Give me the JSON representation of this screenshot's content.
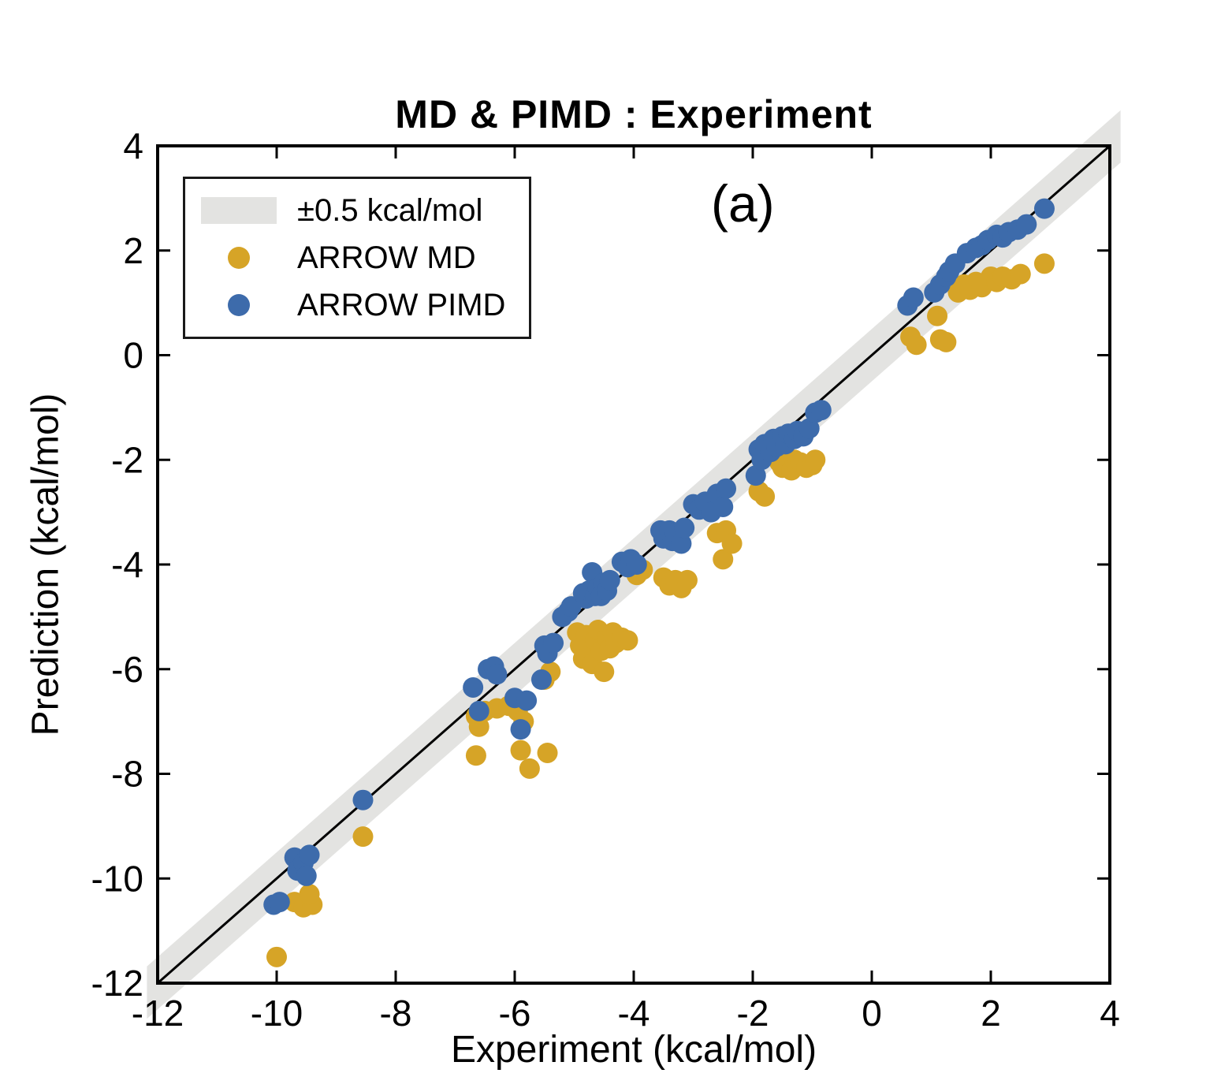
{
  "figure": {
    "title": "MD & PIMD : Experiment",
    "annotation": "(a)",
    "xlabel": "Experiment (kcal/mol)",
    "ylabel": "Prediction (kcal/mol)"
  },
  "legend": {
    "band_label": "±0.5 kcal/mol",
    "md_label": "ARROW MD",
    "pimd_label": "ARROW PIMD"
  },
  "colors": {
    "md": "#D6A427",
    "pimd": "#3D6BAB",
    "band": "#E3E3E1",
    "line": "#000000",
    "frame": "#000000"
  },
  "chart_data": {
    "type": "scatter",
    "title": "MD & PIMD : Experiment",
    "xlabel": "Experiment (kcal/mol)",
    "ylabel": "Prediction (kcal/mol)",
    "xlim": [
      -12,
      4
    ],
    "ylim": [
      -12,
      4
    ],
    "xticks": [
      -12,
      -10,
      -8,
      -6,
      -4,
      -2,
      0,
      2,
      4
    ],
    "yticks": [
      -12,
      -10,
      -8,
      -6,
      -4,
      -2,
      0,
      2,
      4
    ],
    "grid": false,
    "legend_position": "top-left",
    "reference_line": {
      "type": "identity",
      "band_halfwidth": 0.5,
      "band_label": "±0.5 kcal/mol"
    },
    "series": [
      {
        "name": "ARROW MD",
        "color": "#D6A427",
        "points": [
          [
            -10.0,
            -11.5
          ],
          [
            -9.7,
            -10.45
          ],
          [
            -9.55,
            -10.55
          ],
          [
            -9.4,
            -10.5
          ],
          [
            -9.45,
            -10.3
          ],
          [
            -8.55,
            -9.2
          ],
          [
            -6.65,
            -6.9
          ],
          [
            -6.6,
            -7.1
          ],
          [
            -6.5,
            -6.8
          ],
          [
            -6.65,
            -7.65
          ],
          [
            -6.3,
            -6.75
          ],
          [
            -6.1,
            -6.7
          ],
          [
            -5.95,
            -6.8
          ],
          [
            -5.9,
            -7.55
          ],
          [
            -5.75,
            -7.9
          ],
          [
            -5.45,
            -7.6
          ],
          [
            -5.85,
            -7.0
          ],
          [
            -5.5,
            -6.2
          ],
          [
            -5.4,
            -6.05
          ],
          [
            -4.95,
            -5.3
          ],
          [
            -4.9,
            -5.55
          ],
          [
            -4.85,
            -5.8
          ],
          [
            -4.8,
            -5.35
          ],
          [
            -4.75,
            -5.6
          ],
          [
            -4.7,
            -5.9
          ],
          [
            -4.65,
            -5.45
          ],
          [
            -4.6,
            -5.25
          ],
          [
            -4.55,
            -5.65
          ],
          [
            -4.5,
            -6.05
          ],
          [
            -4.45,
            -5.4
          ],
          [
            -4.4,
            -5.6
          ],
          [
            -4.35,
            -5.3
          ],
          [
            -4.3,
            -5.5
          ],
          [
            -4.2,
            -5.4
          ],
          [
            -4.1,
            -5.45
          ],
          [
            -3.95,
            -4.2
          ],
          [
            -3.85,
            -4.1
          ],
          [
            -3.5,
            -4.25
          ],
          [
            -3.4,
            -4.4
          ],
          [
            -3.3,
            -4.3
          ],
          [
            -3.2,
            -4.45
          ],
          [
            -3.1,
            -4.3
          ],
          [
            -2.6,
            -3.4
          ],
          [
            -2.5,
            -3.9
          ],
          [
            -2.45,
            -3.35
          ],
          [
            -2.35,
            -3.6
          ],
          [
            -1.9,
            -2.6
          ],
          [
            -1.8,
            -2.7
          ],
          [
            -1.55,
            -2.05
          ],
          [
            -1.5,
            -2.15
          ],
          [
            -1.45,
            -1.95
          ],
          [
            -1.4,
            -2.1
          ],
          [
            -1.35,
            -2.2
          ],
          [
            -1.3,
            -2.0
          ],
          [
            -1.25,
            -2.1
          ],
          [
            -1.2,
            -2.05
          ],
          [
            -1.1,
            -2.15
          ],
          [
            -1.0,
            -2.1
          ],
          [
            -0.95,
            -2.0
          ],
          [
            0.65,
            0.35
          ],
          [
            0.75,
            0.2
          ],
          [
            1.1,
            0.75
          ],
          [
            1.15,
            0.3
          ],
          [
            1.25,
            0.25
          ],
          [
            1.45,
            1.2
          ],
          [
            1.55,
            1.35
          ],
          [
            1.65,
            1.25
          ],
          [
            1.75,
            1.4
          ],
          [
            1.85,
            1.3
          ],
          [
            2.0,
            1.5
          ],
          [
            2.1,
            1.4
          ],
          [
            2.2,
            1.5
          ],
          [
            2.35,
            1.45
          ],
          [
            2.5,
            1.55
          ],
          [
            2.9,
            1.75
          ]
        ]
      },
      {
        "name": "ARROW PIMD",
        "color": "#3D6BAB",
        "points": [
          [
            -10.05,
            -10.5
          ],
          [
            -9.95,
            -10.45
          ],
          [
            -9.7,
            -9.6
          ],
          [
            -9.65,
            -9.85
          ],
          [
            -9.55,
            -9.7
          ],
          [
            -9.5,
            -9.95
          ],
          [
            -9.45,
            -9.55
          ],
          [
            -8.55,
            -8.5
          ],
          [
            -6.7,
            -6.35
          ],
          [
            -6.6,
            -6.8
          ],
          [
            -6.45,
            -6.0
          ],
          [
            -6.35,
            -5.95
          ],
          [
            -6.3,
            -6.1
          ],
          [
            -6.0,
            -6.55
          ],
          [
            -5.9,
            -7.15
          ],
          [
            -5.8,
            -6.6
          ],
          [
            -5.55,
            -6.2
          ],
          [
            -5.5,
            -5.55
          ],
          [
            -5.45,
            -5.7
          ],
          [
            -5.35,
            -5.5
          ],
          [
            -5.2,
            -5.0
          ],
          [
            -5.1,
            -4.9
          ],
          [
            -5.05,
            -4.8
          ],
          [
            -4.85,
            -4.55
          ],
          [
            -4.8,
            -4.65
          ],
          [
            -4.75,
            -4.5
          ],
          [
            -4.7,
            -4.15
          ],
          [
            -4.65,
            -4.6
          ],
          [
            -4.6,
            -4.45
          ],
          [
            -4.55,
            -4.6
          ],
          [
            -4.5,
            -4.35
          ],
          [
            -4.45,
            -4.5
          ],
          [
            -4.4,
            -4.3
          ],
          [
            -4.2,
            -3.95
          ],
          [
            -4.1,
            -4.05
          ],
          [
            -4.05,
            -3.9
          ],
          [
            -3.95,
            -4.0
          ],
          [
            -3.55,
            -3.35
          ],
          [
            -3.5,
            -3.5
          ],
          [
            -3.4,
            -3.35
          ],
          [
            -3.35,
            -3.55
          ],
          [
            -3.3,
            -3.4
          ],
          [
            -3.2,
            -3.6
          ],
          [
            -3.15,
            -3.3
          ],
          [
            -3.0,
            -2.85
          ],
          [
            -2.9,
            -2.95
          ],
          [
            -2.8,
            -2.8
          ],
          [
            -2.7,
            -3.0
          ],
          [
            -2.6,
            -2.65
          ],
          [
            -2.5,
            -2.9
          ],
          [
            -2.45,
            -2.55
          ],
          [
            -1.95,
            -2.3
          ],
          [
            -1.9,
            -1.8
          ],
          [
            -1.85,
            -2.0
          ],
          [
            -1.8,
            -1.7
          ],
          [
            -1.7,
            -1.85
          ],
          [
            -1.65,
            -1.6
          ],
          [
            -1.6,
            -1.75
          ],
          [
            -1.5,
            -1.55
          ],
          [
            -1.45,
            -1.7
          ],
          [
            -1.4,
            -1.5
          ],
          [
            -1.3,
            -1.6
          ],
          [
            -1.25,
            -1.45
          ],
          [
            -1.15,
            -1.55
          ],
          [
            -1.05,
            -1.4
          ],
          [
            -0.95,
            -1.1
          ],
          [
            -0.85,
            -1.05
          ],
          [
            0.6,
            0.95
          ],
          [
            0.7,
            1.1
          ],
          [
            1.05,
            1.2
          ],
          [
            1.15,
            1.35
          ],
          [
            1.25,
            1.5
          ],
          [
            1.3,
            1.6
          ],
          [
            1.4,
            1.75
          ],
          [
            1.6,
            1.95
          ],
          [
            1.75,
            2.05
          ],
          [
            1.85,
            2.1
          ],
          [
            1.95,
            2.2
          ],
          [
            2.1,
            2.3
          ],
          [
            2.2,
            2.25
          ],
          [
            2.3,
            2.35
          ],
          [
            2.45,
            2.4
          ],
          [
            2.6,
            2.5
          ],
          [
            2.9,
            2.8
          ]
        ]
      }
    ]
  }
}
